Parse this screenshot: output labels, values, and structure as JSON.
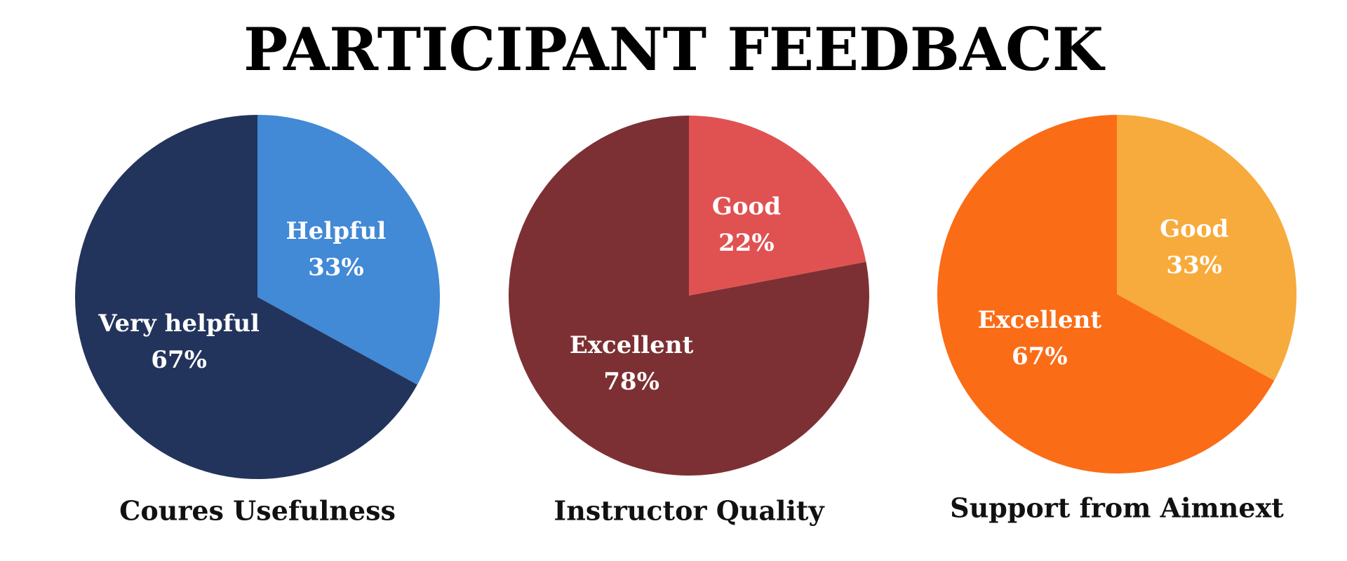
{
  "title": "PARTICIPANT FEEDBACK",
  "chart_data": [
    {
      "type": "pie",
      "title": "Coures Usefulness",
      "categories": [
        "Helpful",
        "Very helpful"
      ],
      "values": [
        33,
        67
      ],
      "value_labels": [
        "33%",
        "67%"
      ],
      "colors": [
        "#4289d6",
        "#23345c"
      ]
    },
    {
      "type": "pie",
      "title": "Instructor Quality",
      "categories": [
        "Good",
        "Excellent"
      ],
      "values": [
        22,
        78
      ],
      "value_labels": [
        "22%",
        "78%"
      ],
      "colors": [
        "#e05252",
        "#7d3033"
      ]
    },
    {
      "type": "pie",
      "title": "Support from Aimnext",
      "categories": [
        "Good",
        "Excellent"
      ],
      "values": [
        33,
        67
      ],
      "value_labels": [
        "33%",
        "67%"
      ],
      "colors": [
        "#f7ab3c",
        "#fb6c17"
      ]
    }
  ]
}
